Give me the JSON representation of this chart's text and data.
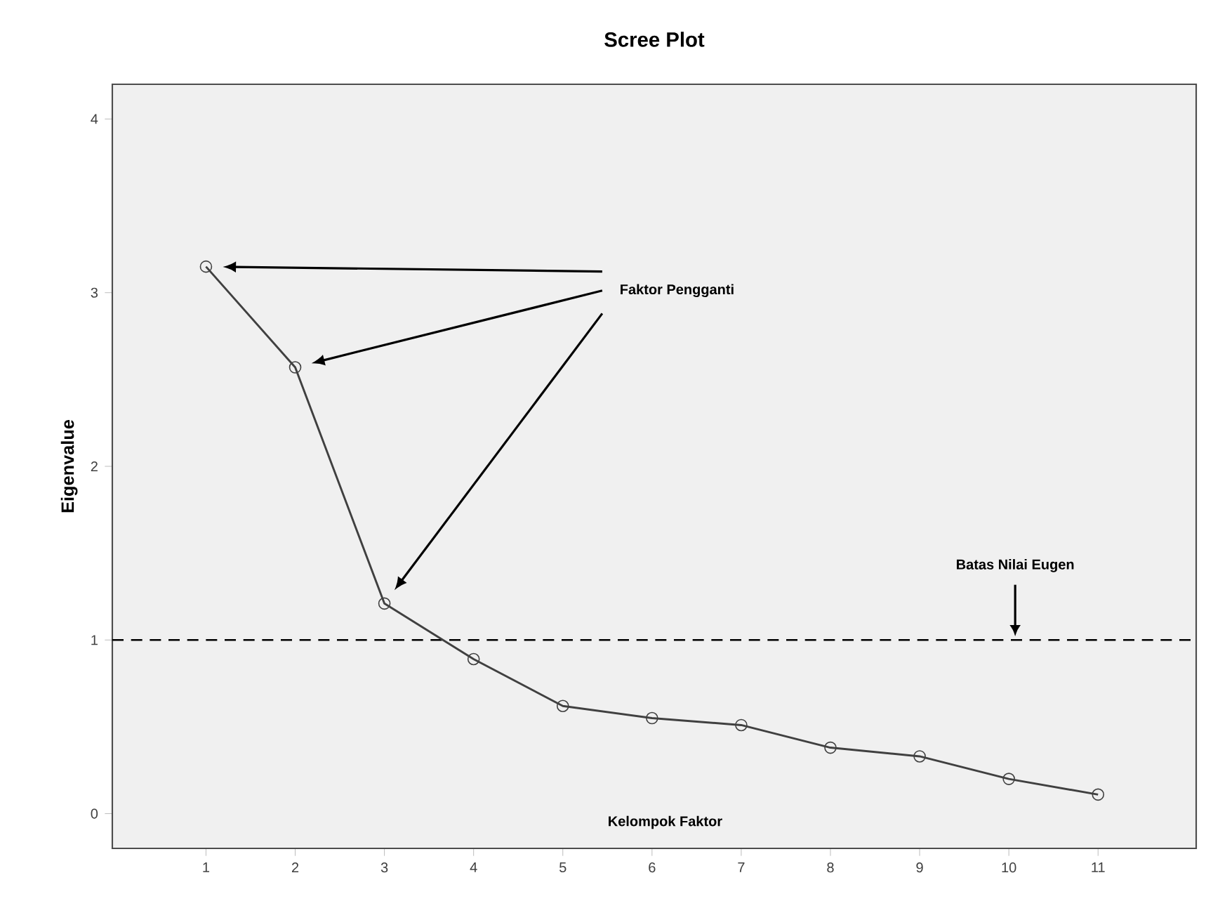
{
  "chart_data": {
    "type": "line",
    "title": "Scree Plot",
    "xlabel": "Kelompok Faktor",
    "ylabel": "Eigenvalue",
    "x": [
      1,
      2,
      3,
      4,
      5,
      6,
      7,
      8,
      9,
      10,
      11
    ],
    "series": [
      {
        "color": "#404040",
        "values": [
          3.15,
          2.57,
          1.21,
          0.89,
          0.62,
          0.55,
          0.51,
          0.38,
          0.33,
          0.2,
          0.11
        ]
      }
    ],
    "xlim": [
      -0.05,
      12.1
    ],
    "ylim": [
      -0.2,
      4.2
    ],
    "xticks": [
      1,
      2,
      3,
      4,
      5,
      6,
      7,
      8,
      9,
      10,
      11
    ],
    "yticks": [
      0,
      1,
      2,
      3,
      4
    ],
    "ref_lines": [
      {
        "axis": "y",
        "value": 1,
        "label": "Batas Nilai Eugen",
        "line_style": "dashed",
        "color": "#000000"
      }
    ],
    "annotations": [
      "Faktor Pengganti"
    ],
    "marker": "circle",
    "line_style": "solid"
  }
}
